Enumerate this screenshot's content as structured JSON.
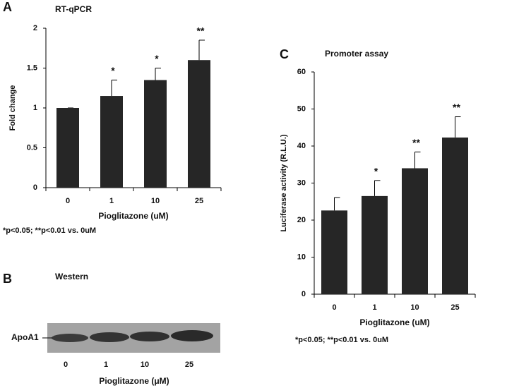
{
  "panel_letters": [
    "A",
    "B",
    "C"
  ],
  "chart_data": [
    {
      "type": "bar",
      "title": "RT-qPCR",
      "ylabel": "Fold change",
      "xlabel": "Pioglitazone (uM)",
      "categories": [
        "0",
        "1",
        "10",
        "25"
      ],
      "values": [
        1,
        1.15,
        1.35,
        1.6
      ],
      "errors": [
        0,
        0.2,
        0.15,
        0.25
      ],
      "annotations": [
        null,
        "*",
        "*",
        "**"
      ],
      "color": "#262626",
      "ylim": [
        0,
        2
      ],
      "yticks": [
        0,
        0.5,
        1,
        1.5,
        2
      ],
      "footnote": "*p<0.05; **p<0.01 vs. 0uM"
    },
    {
      "type": "bar",
      "title": "Promoter assay",
      "ylabel": "Luciferase activity (R.L.U.)",
      "xlabel": "Pioglitazone (uM)",
      "categories": [
        "0",
        "1",
        "10",
        "25"
      ],
      "values": [
        22.6,
        26.5,
        34,
        42.3
      ],
      "errors": [
        3.5,
        4.2,
        4.4,
        5.6
      ],
      "annotations": [
        null,
        "*",
        "**",
        "**"
      ],
      "color": "#262626",
      "ylim": [
        0,
        60
      ],
      "yticks": [
        0,
        10,
        20,
        30,
        40,
        50,
        60
      ],
      "footnote": "*p<0.05; **p<0.01 vs. 0uM"
    }
  ],
  "western": {
    "title": "Western",
    "band_label": "ApoA1",
    "lanes": [
      "0",
      "1",
      "10",
      "25"
    ],
    "xlabel": "Pioglitazone (μM)"
  }
}
